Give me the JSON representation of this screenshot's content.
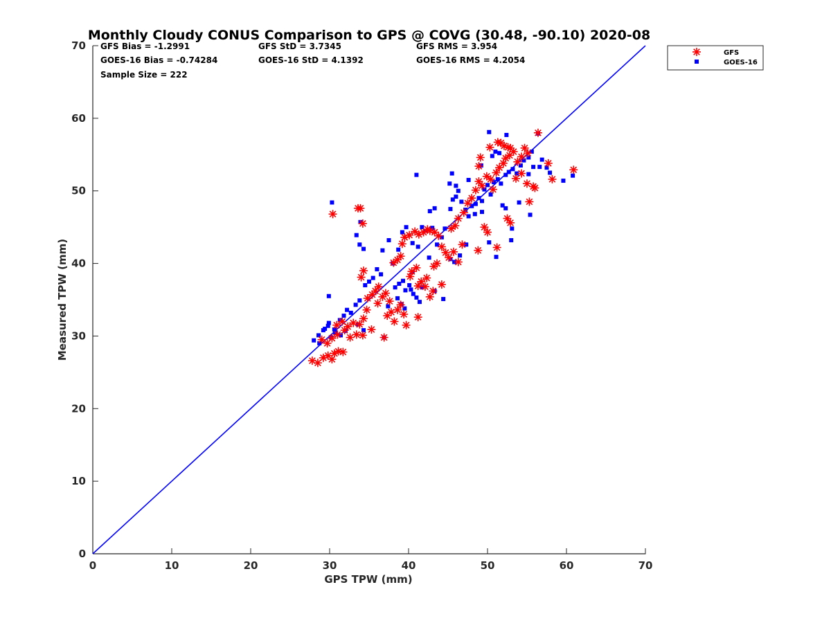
{
  "chart_data": {
    "type": "scatter",
    "title": "Monthly Cloudy CONUS Comparison to GPS @ COVG (30.48, -90.10) 2020-08",
    "xlabel": "GPS TPW (mm)",
    "ylabel": "Measured TPW (mm)",
    "xlim": [
      0,
      70
    ],
    "ylim": [
      0,
      70
    ],
    "xticks": [
      "0",
      "10",
      "20",
      "30",
      "40",
      "50",
      "60",
      "70"
    ],
    "yticks": [
      "0",
      "10",
      "20",
      "30",
      "40",
      "50",
      "60",
      "70"
    ],
    "grid": false,
    "legend_position": "top-right",
    "stats": {
      "row1": [
        "GFS Bias = -1.2991",
        "GFS StD = 3.7345",
        "GFS RMS = 3.954"
      ],
      "row2": [
        "GOES-16 Bias = -0.74284",
        "GOES-16 StD = 4.1392",
        "GOES-16 RMS = 4.2054"
      ],
      "row3": [
        "Sample Size = 222"
      ]
    },
    "one_to_one_line": {
      "x": [
        0,
        70
      ],
      "y": [
        0,
        70
      ],
      "color": "#0000ff"
    },
    "series": [
      {
        "name": "GFS",
        "marker": "asterisk",
        "color": "#ff0000",
        "points": [
          [
            27.8,
            26.6
          ],
          [
            28.5,
            26.3
          ],
          [
            29.2,
            27.0
          ],
          [
            29.8,
            27.3
          ],
          [
            30.3,
            26.8
          ],
          [
            30.6,
            27.6
          ],
          [
            31.1,
            27.9
          ],
          [
            31.7,
            27.8
          ],
          [
            29.0,
            29.5
          ],
          [
            29.7,
            29.0
          ],
          [
            30.3,
            29.7
          ],
          [
            31.0,
            30.2
          ],
          [
            31.9,
            30.8
          ],
          [
            32.6,
            29.8
          ],
          [
            33.4,
            30.2
          ],
          [
            34.2,
            30.1
          ],
          [
            30.4,
            46.8
          ],
          [
            33.6,
            47.6
          ],
          [
            33.9,
            47.6
          ],
          [
            34.2,
            45.5
          ],
          [
            30.9,
            31.5
          ],
          [
            31.6,
            32.0
          ],
          [
            32.3,
            31.3
          ],
          [
            33.0,
            31.8
          ],
          [
            33.8,
            31.6
          ],
          [
            34.3,
            32.4
          ],
          [
            34.7,
            33.6
          ],
          [
            35.3,
            30.9
          ],
          [
            36.9,
            29.8
          ],
          [
            34.0,
            38.1
          ],
          [
            34.3,
            39.0
          ],
          [
            34.8,
            35.2
          ],
          [
            35.4,
            35.7
          ],
          [
            35.8,
            36.2
          ],
          [
            36.2,
            36.8
          ],
          [
            36.7,
            35.4
          ],
          [
            37.1,
            35.9
          ],
          [
            37.6,
            34.8
          ],
          [
            36.1,
            34.5
          ],
          [
            37.3,
            32.8
          ],
          [
            37.8,
            33.3
          ],
          [
            38.2,
            32.0
          ],
          [
            38.6,
            33.6
          ],
          [
            39.0,
            34.3
          ],
          [
            39.4,
            33.0
          ],
          [
            39.7,
            31.5
          ],
          [
            40.2,
            38.2
          ],
          [
            40.4,
            38.9
          ],
          [
            41.0,
            39.4
          ],
          [
            41.2,
            36.9
          ],
          [
            41.6,
            37.5
          ],
          [
            42.1,
            36.8
          ],
          [
            42.3,
            38.0
          ],
          [
            42.7,
            35.4
          ],
          [
            43.1,
            36.2
          ],
          [
            41.2,
            32.6
          ],
          [
            38.1,
            40.1
          ],
          [
            38.6,
            40.5
          ],
          [
            39.0,
            41.0
          ],
          [
            39.2,
            42.7
          ],
          [
            39.5,
            43.6
          ],
          [
            40.1,
            43.9
          ],
          [
            40.8,
            44.4
          ],
          [
            41.3,
            44.0
          ],
          [
            41.9,
            44.3
          ],
          [
            42.4,
            44.7
          ],
          [
            42.7,
            44.5
          ],
          [
            43.3,
            44.3
          ],
          [
            43.8,
            43.8
          ],
          [
            44.2,
            42.3
          ],
          [
            44.7,
            41.5
          ],
          [
            43.2,
            39.6
          ],
          [
            43.6,
            40.0
          ],
          [
            44.2,
            37.1
          ],
          [
            45.1,
            40.8
          ],
          [
            45.7,
            41.6
          ],
          [
            46.3,
            40.2
          ],
          [
            46.8,
            42.6
          ],
          [
            45.4,
            44.8
          ],
          [
            45.9,
            45.2
          ],
          [
            46.3,
            46.2
          ],
          [
            47.0,
            47.0
          ],
          [
            47.5,
            48.3
          ],
          [
            48.0,
            49.0
          ],
          [
            48.5,
            50.1
          ],
          [
            48.9,
            51.3
          ],
          [
            49.3,
            50.7
          ],
          [
            49.9,
            52.0
          ],
          [
            50.4,
            51.6
          ],
          [
            50.7,
            50.2
          ],
          [
            51.1,
            52.5
          ],
          [
            51.5,
            53.2
          ],
          [
            52.0,
            53.8
          ],
          [
            52.3,
            54.5
          ],
          [
            52.8,
            54.9
          ],
          [
            53.3,
            55.4
          ],
          [
            53.8,
            54.0
          ],
          [
            54.3,
            54.7
          ],
          [
            54.7,
            55.9
          ],
          [
            55.1,
            55.2
          ],
          [
            49.1,
            54.6
          ],
          [
            50.3,
            56.0
          ],
          [
            51.3,
            56.7
          ],
          [
            51.7,
            56.6
          ],
          [
            52.1,
            56.2
          ],
          [
            52.6,
            56.0
          ],
          [
            52.9,
            55.9
          ],
          [
            48.9,
            53.4
          ],
          [
            49.6,
            45.0
          ],
          [
            50.0,
            44.3
          ],
          [
            48.8,
            41.8
          ],
          [
            51.2,
            42.2
          ],
          [
            52.5,
            46.2
          ],
          [
            52.9,
            45.6
          ],
          [
            55.3,
            48.5
          ],
          [
            55.8,
            50.6
          ],
          [
            56.4,
            58.0
          ],
          [
            57.7,
            53.8
          ],
          [
            58.2,
            51.6
          ],
          [
            60.9,
            52.9
          ],
          [
            54.3,
            52.4
          ],
          [
            55.0,
            51.0
          ],
          [
            56.0,
            50.4
          ],
          [
            53.6,
            51.7
          ]
        ]
      },
      {
        "name": "GOES-16",
        "marker": "square",
        "color": "#0000ff",
        "points": [
          [
            28.0,
            29.4
          ],
          [
            28.6,
            30.1
          ],
          [
            29.2,
            30.8
          ],
          [
            29.8,
            31.4
          ],
          [
            30.2,
            29.8
          ],
          [
            30.7,
            30.5
          ],
          [
            31.4,
            30.1
          ],
          [
            32.0,
            30.7
          ],
          [
            28.7,
            29.0
          ],
          [
            29.4,
            31.0
          ],
          [
            29.9,
            31.8
          ],
          [
            30.6,
            30.9
          ],
          [
            31.3,
            32.2
          ],
          [
            31.8,
            32.8
          ],
          [
            32.2,
            33.6
          ],
          [
            32.7,
            33.2
          ],
          [
            33.3,
            34.3
          ],
          [
            33.8,
            34.9
          ],
          [
            34.3,
            30.8
          ],
          [
            33.6,
            31.6
          ],
          [
            30.3,
            48.4
          ],
          [
            33.4,
            43.9
          ],
          [
            33.9,
            45.7
          ],
          [
            33.8,
            42.6
          ],
          [
            34.3,
            42.0
          ],
          [
            29.9,
            35.5
          ],
          [
            34.5,
            37.0
          ],
          [
            35.0,
            37.5
          ],
          [
            35.5,
            38.0
          ],
          [
            36.0,
            39.2
          ],
          [
            36.5,
            38.5
          ],
          [
            36.7,
            41.8
          ],
          [
            37.5,
            43.2
          ],
          [
            38.0,
            40.0
          ],
          [
            38.3,
            36.7
          ],
          [
            38.8,
            37.2
          ],
          [
            39.3,
            37.6
          ],
          [
            39.6,
            36.3
          ],
          [
            40.1,
            37.0
          ],
          [
            40.3,
            36.4
          ],
          [
            40.6,
            35.8
          ],
          [
            41.0,
            35.3
          ],
          [
            41.4,
            34.7
          ],
          [
            38.6,
            35.2
          ],
          [
            39.1,
            34.4
          ],
          [
            39.5,
            33.8
          ],
          [
            37.4,
            34.1
          ],
          [
            36.9,
            29.8
          ],
          [
            38.7,
            41.9
          ],
          [
            39.2,
            44.3
          ],
          [
            39.7,
            45.0
          ],
          [
            40.5,
            42.8
          ],
          [
            41.2,
            42.3
          ],
          [
            41.7,
            45.0
          ],
          [
            42.2,
            44.5
          ],
          [
            42.7,
            47.2
          ],
          [
            43.3,
            47.6
          ],
          [
            43.0,
            44.9
          ],
          [
            43.6,
            42.6
          ],
          [
            44.2,
            43.6
          ],
          [
            44.6,
            44.8
          ],
          [
            45.3,
            47.5
          ],
          [
            45.6,
            48.8
          ],
          [
            46.0,
            49.2
          ],
          [
            46.3,
            50.0
          ],
          [
            46.7,
            48.5
          ],
          [
            47.2,
            47.4
          ],
          [
            47.6,
            46.5
          ],
          [
            48.0,
            47.9
          ],
          [
            48.5,
            48.2
          ],
          [
            48.9,
            49.0
          ],
          [
            49.3,
            48.6
          ],
          [
            49.6,
            50.2
          ],
          [
            50.0,
            50.8
          ],
          [
            50.4,
            49.5
          ],
          [
            50.8,
            51.2
          ],
          [
            51.3,
            51.6
          ],
          [
            51.7,
            51.0
          ],
          [
            52.3,
            52.2
          ],
          [
            52.7,
            52.6
          ],
          [
            53.2,
            53.0
          ],
          [
            53.7,
            52.4
          ],
          [
            54.2,
            53.5
          ],
          [
            54.6,
            54.2
          ],
          [
            55.2,
            54.6
          ],
          [
            55.6,
            55.4
          ],
          [
            51.0,
            55.4
          ],
          [
            51.5,
            55.2
          ],
          [
            52.4,
            57.7
          ],
          [
            50.2,
            58.1
          ],
          [
            50.6,
            54.8
          ],
          [
            45.5,
            52.4
          ],
          [
            45.2,
            51.0
          ],
          [
            46.0,
            50.7
          ],
          [
            47.6,
            51.5
          ],
          [
            49.2,
            53.5
          ],
          [
            52.3,
            47.6
          ],
          [
            51.9,
            48.0
          ],
          [
            53.0,
            43.2
          ],
          [
            51.1,
            40.9
          ],
          [
            53.1,
            44.8
          ],
          [
            50.2,
            42.9
          ],
          [
            41.0,
            52.2
          ],
          [
            44.4,
            35.1
          ],
          [
            40.5,
            38.8
          ],
          [
            41.7,
            36.7
          ],
          [
            42.6,
            40.8
          ],
          [
            43.3,
            36.2
          ],
          [
            45.3,
            40.6
          ],
          [
            45.8,
            40.2
          ],
          [
            46.5,
            41.1
          ],
          [
            47.3,
            42.6
          ],
          [
            48.4,
            46.8
          ],
          [
            49.3,
            47.1
          ],
          [
            55.4,
            46.7
          ],
          [
            55.2,
            52.3
          ],
          [
            55.8,
            53.3
          ],
          [
            56.6,
            53.3
          ],
          [
            57.5,
            53.2
          ],
          [
            57.9,
            52.5
          ],
          [
            56.4,
            57.9
          ],
          [
            59.6,
            51.4
          ],
          [
            60.8,
            52.1
          ],
          [
            56.9,
            54.3
          ],
          [
            54.0,
            48.4
          ]
        ]
      }
    ]
  }
}
